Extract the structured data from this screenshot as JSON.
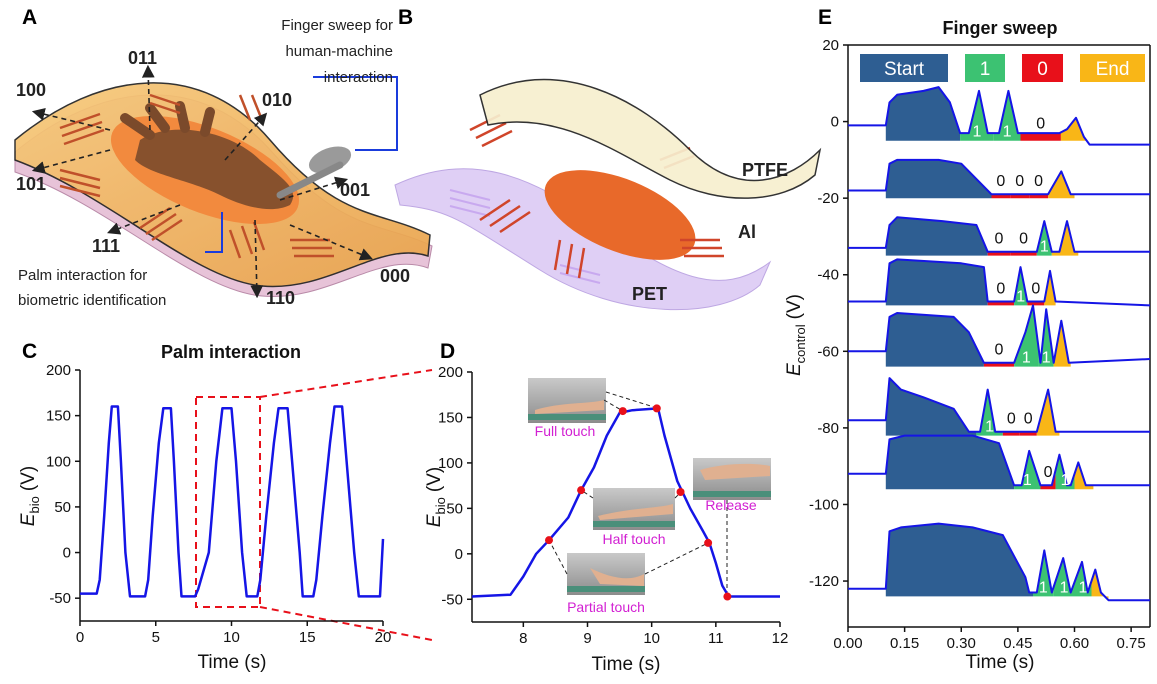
{
  "figure": {
    "panel_labels": [
      "A",
      "B",
      "C",
      "D",
      "E"
    ],
    "panel_a": {
      "codes": [
        "011",
        "010",
        "100",
        "101",
        "001",
        "111",
        "000",
        "110"
      ],
      "finger_note": [
        "Finger sweep for",
        "human-machine",
        "interaction"
      ],
      "palm_note": [
        "Palm interaction for",
        "biometric identification"
      ]
    },
    "panel_b": {
      "layers": [
        "PTFE",
        "Al",
        "PET"
      ]
    }
  },
  "chart_data": [
    {
      "type": "line",
      "title": "Palm interaction",
      "xlabel": "Time (s)",
      "ylabel": {
        "symbol": "E",
        "subscript": "bio",
        "unit": "(V)"
      },
      "xlim": [
        0,
        20
      ],
      "xticks": [
        0,
        5,
        10,
        15,
        20
      ],
      "ylim": [
        -75,
        200
      ],
      "yticks": [
        -50,
        0,
        50,
        100,
        150,
        200
      ],
      "x": [
        0,
        1.1,
        1.3,
        1.6,
        1.9,
        2.1,
        2.5,
        2.7,
        3.0,
        3.3,
        4.3,
        4.5,
        4.8,
        5.2,
        5.5,
        6.0,
        6.2,
        6.5,
        6.7,
        7.6,
        7.8,
        8.5,
        9.0,
        9.4,
        10.0,
        10.3,
        10.7,
        11.0,
        11.7,
        11.9,
        12.3,
        12.8,
        13.1,
        13.7,
        14.0,
        14.5,
        14.7,
        15.4,
        15.6,
        16.0,
        16.5,
        16.8,
        17.3,
        17.6,
        18.1,
        18.4,
        19.8,
        20
      ],
      "series": [
        {
          "color": "#1515e6",
          "values": [
            -45,
            -45,
            -30,
            40,
            120,
            160,
            160,
            100,
            0,
            -48,
            -48,
            -30,
            40,
            120,
            158,
            158,
            100,
            0,
            -48,
            -48,
            -40,
            0,
            100,
            158,
            158,
            100,
            0,
            -48,
            -48,
            -30,
            40,
            120,
            158,
            158,
            100,
            0,
            -48,
            -48,
            -30,
            40,
            120,
            160,
            160,
            100,
            0,
            -48,
            -48,
            15
          ]
        }
      ]
    },
    {
      "type": "line",
      "xlabel": "Time (s)",
      "ylabel": {
        "symbol": "E",
        "subscript": "bio",
        "unit": "(V)"
      },
      "xlim": [
        7.2,
        12
      ],
      "xticks": [
        8,
        9,
        10,
        11,
        12
      ],
      "ylim": [
        -75,
        200
      ],
      "yticks": [
        -50,
        0,
        50,
        100,
        150,
        200
      ],
      "x": [
        7.2,
        7.8,
        8.0,
        8.2,
        8.4,
        8.7,
        8.9,
        9.1,
        9.3,
        9.5,
        9.7,
        10.1,
        10.2,
        10.4,
        10.6,
        10.8,
        10.9,
        11.0,
        11.1,
        11.2,
        12
      ],
      "series": [
        {
          "color": "#1515e6",
          "values": [
            -47,
            -45,
            -25,
            0,
            15,
            40,
            70,
            95,
            130,
            155,
            158,
            160,
            130,
            80,
            50,
            25,
            12,
            -10,
            -35,
            -47,
            -47
          ]
        }
      ],
      "markers": {
        "color": "#e8101a",
        "x": [
          8.4,
          8.9,
          9.55,
          10.08,
          10.45,
          10.88,
          11.18
        ],
        "values": [
          15,
          70,
          157,
          160,
          68,
          12,
          -47
        ]
      },
      "annotations": [
        "Full touch",
        "Half touch",
        "Partial touch",
        "Release"
      ]
    },
    {
      "type": "line",
      "title": "Finger sweep",
      "xlabel": "Time (s)",
      "ylabel": {
        "symbol": "E",
        "subscript": "control",
        "unit": "(V)"
      },
      "xlim": [
        0,
        0.8
      ],
      "xticks": [
        {
          "value": 0,
          "label": "0.00"
        },
        0.15,
        {
          "value": 0.3,
          "label": "0.30"
        },
        0.45,
        {
          "value": 0.6,
          "label": "0.60"
        },
        0.75
      ],
      "ylim": [
        -132,
        20
      ],
      "yticks": [
        20,
        0,
        -20,
        -40,
        -60,
        -80,
        -100,
        -120
      ],
      "line_color": "#1515e6",
      "legend": [
        {
          "label": "Start",
          "color": "#2e5e92"
        },
        {
          "label": "1",
          "color": "#3cc272"
        },
        {
          "label": "0",
          "color": "#e8101a"
        },
        {
          "label": "End",
          "color": "#f9b617"
        }
      ],
      "traces": [
        {
          "floor": -5,
          "x": [
            0,
            0.1,
            0.11,
            0.13,
            0.2,
            0.24,
            0.27,
            0.297,
            0.32,
            0.347,
            0.37,
            0.4,
            0.425,
            0.45,
            0.56,
            0.58,
            0.604,
            0.625,
            0.64,
            0.8
          ],
          "values": [
            -1,
            -1,
            5,
            7,
            8,
            9,
            5,
            -3,
            -3,
            8,
            -3,
            -3,
            8,
            -3,
            -3,
            -2,
            1,
            -4,
            -6,
            -6
          ],
          "start": [
            0.1,
            0.297
          ],
          "end": [
            0.564,
            0.635
          ],
          "bits": [
            {
              "label": "1",
              "range": [
                0.297,
                0.386
              ]
            },
            {
              "label": "1",
              "range": [
                0.386,
                0.457
              ]
            },
            {
              "label": "0",
              "range": [
                0.457,
                0.564
              ]
            }
          ]
        },
        {
          "floor": -20,
          "x": [
            0,
            0.1,
            0.11,
            0.13,
            0.24,
            0.3,
            0.38,
            0.53,
            0.565,
            0.59,
            0.8
          ],
          "values": [
            -18,
            -18,
            -11,
            -10,
            -10,
            -11,
            -19,
            -19,
            -13,
            -19,
            -19
          ],
          "start": [
            0.1,
            0.38
          ],
          "end": [
            0.53,
            0.6
          ],
          "bits": [
            {
              "label": "0",
              "range": [
                0.38,
                0.43
              ]
            },
            {
              "label": "0",
              "range": [
                0.43,
                0.48
              ]
            },
            {
              "label": "0",
              "range": [
                0.48,
                0.53
              ]
            }
          ]
        },
        {
          "floor": -35,
          "x": [
            0,
            0.1,
            0.11,
            0.13,
            0.25,
            0.34,
            0.37,
            0.5,
            0.52,
            0.54,
            0.56,
            0.58,
            0.6,
            0.8
          ],
          "values": [
            -33,
            -33,
            -27,
            -25,
            -26,
            -27,
            -34,
            -34,
            -26,
            -34,
            -34,
            -26,
            -34,
            -34
          ],
          "start": [
            0.1,
            0.37
          ],
          "end": [
            0.54,
            0.61
          ],
          "bits": [
            {
              "label": "0",
              "range": [
                0.37,
                0.43
              ]
            },
            {
              "label": "0",
              "range": [
                0.43,
                0.5
              ]
            },
            {
              "label": "1",
              "range": [
                0.5,
                0.54
              ]
            }
          ]
        },
        {
          "floor": -48,
          "x": [
            0,
            0.1,
            0.11,
            0.13,
            0.3,
            0.36,
            0.37,
            0.44,
            0.457,
            0.475,
            0.52,
            0.535,
            0.55,
            0.8
          ],
          "values": [
            -47,
            -47,
            -37,
            -36,
            -37,
            -38,
            -47,
            -47,
            -38,
            -47,
            -47,
            -39,
            -47,
            -48
          ],
          "start": [
            0.1,
            0.37
          ],
          "end": [
            0.52,
            0.55
          ],
          "bits": [
            {
              "label": "0",
              "range": [
                0.37,
                0.44
              ]
            },
            {
              "label": "1",
              "range": [
                0.44,
                0.475
              ]
            },
            {
              "label": "0",
              "range": [
                0.475,
                0.52
              ]
            }
          ]
        },
        {
          "floor": -64,
          "x": [
            0,
            0.1,
            0.11,
            0.13,
            0.28,
            0.32,
            0.36,
            0.44,
            0.47,
            0.49,
            0.51,
            0.525,
            0.545,
            0.565,
            0.585,
            0.8
          ],
          "values": [
            -60,
            -60,
            -51,
            -50,
            -51,
            -55,
            -63,
            -63,
            -55,
            -48,
            -63,
            -49,
            -63,
            -52,
            -63,
            -62
          ],
          "start": [
            0.1,
            0.36
          ],
          "end": [
            0.545,
            0.59
          ],
          "bits": [
            {
              "label": "0",
              "range": [
                0.36,
                0.44
              ]
            },
            {
              "label": "1",
              "range": [
                0.44,
                0.505
              ]
            },
            {
              "label": "1",
              "range": [
                0.505,
                0.545
              ]
            }
          ]
        },
        {
          "floor": -82,
          "x": [
            0,
            0.1,
            0.11,
            0.14,
            0.2,
            0.28,
            0.32,
            0.35,
            0.37,
            0.39,
            0.5,
            0.53,
            0.55,
            0.8
          ],
          "values": [
            -78,
            -78,
            -67,
            -70,
            -72,
            -75,
            -81,
            -81,
            -70,
            -81,
            -81,
            -70,
            -81,
            -81
          ],
          "start": [
            0.1,
            0.34
          ],
          "end": [
            0.5,
            0.56
          ],
          "bits": [
            {
              "label": "1",
              "range": [
                0.34,
                0.41
              ]
            },
            {
              "label": "0",
              "range": [
                0.41,
                0.455
              ]
            },
            {
              "label": "0",
              "range": [
                0.455,
                0.5
              ]
            }
          ]
        },
        {
          "floor": -96,
          "x": [
            0,
            0.1,
            0.11,
            0.15,
            0.33,
            0.4,
            0.44,
            0.46,
            0.48,
            0.51,
            0.54,
            0.56,
            0.58,
            0.59,
            0.61,
            0.63,
            0.8
          ],
          "values": [
            -92,
            -92,
            -83,
            -82,
            -82,
            -84,
            -95,
            -95,
            -86,
            -95,
            -95,
            -87,
            -95,
            -95,
            -89,
            -95,
            -95
          ],
          "start": [
            0.1,
            0.44
          ],
          "end": [
            0.6,
            0.65
          ],
          "bits": [
            {
              "label": "1",
              "range": [
                0.44,
                0.51
              ]
            },
            {
              "label": "0",
              "range": [
                0.51,
                0.55
              ]
            },
            {
              "label": "1",
              "range": [
                0.55,
                0.6
              ]
            }
          ]
        },
        {
          "floor": -124,
          "x": [
            0,
            0.1,
            0.11,
            0.14,
            0.24,
            0.33,
            0.41,
            0.47,
            0.48,
            0.5,
            0.52,
            0.54,
            0.57,
            0.59,
            0.62,
            0.635,
            0.655,
            0.67,
            0.69,
            0.8
          ],
          "values": [
            -122,
            -122,
            -107,
            -106,
            -105,
            -106,
            -108,
            -119,
            -123,
            -123,
            -112,
            -123,
            -114,
            -123,
            -115,
            -123,
            -117,
            -123,
            -125,
            -125
          ],
          "start": [
            0.1,
            0.49
          ],
          "end": [
            0.645,
            0.69
          ],
          "bits": [
            {
              "label": "1",
              "range": [
                0.49,
                0.545
              ]
            },
            {
              "label": "1",
              "range": [
                0.545,
                0.6
              ]
            },
            {
              "label": "1",
              "range": [
                0.6,
                0.645
              ]
            }
          ]
        }
      ]
    }
  ]
}
